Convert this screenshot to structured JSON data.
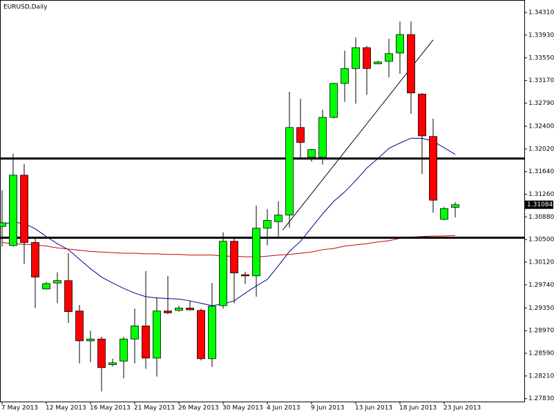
{
  "chart_data": {
    "type": "candlestick",
    "title": "EURUSD,Daily",
    "categories": [
      "7 May 2013",
      null,
      null,
      null,
      "12 May 2013",
      null,
      null,
      null,
      "16 May 2013",
      null,
      null,
      null,
      "21 May 2013",
      null,
      null,
      null,
      "26 May 2013",
      null,
      null,
      null,
      "30 May 2013",
      null,
      null,
      null,
      "4 Jun 2013",
      null,
      null,
      null,
      "9 Jun 2013",
      null,
      null,
      null,
      "13 Jun 2013",
      null,
      null,
      null,
      "18 Jun 2013",
      null,
      null,
      null,
      "23 Jun 2013",
      null
    ],
    "open": [
      1.3072,
      1.304,
      1.3158,
      1.3045,
      1.2967,
      1.2977,
      1.2981,
      1.293,
      1.288,
      1.2883,
      1.284,
      1.2846,
      1.2883,
      1.2905,
      1.2851,
      1.293,
      1.2931,
      1.2935,
      1.2931,
      1.285,
      1.2939,
      1.3047,
      1.2991,
      1.2989,
      1.3069,
      1.308,
      1.3091,
      1.3238,
      1.3188,
      1.3188,
      1.3255,
      1.3312,
      1.3337,
      1.3372,
      1.3345,
      1.3349,
      1.3363,
      1.3394,
      1.3294,
      1.3223,
      1.3084,
      1.3104
    ],
    "high": [
      1.3133,
      1.3194,
      1.3177,
      1.3053,
      1.2979,
      1.2995,
      1.3027,
      1.294,
      1.2897,
      1.2887,
      1.285,
      1.2887,
      1.2934,
      1.2997,
      1.2953,
      1.2989,
      1.2939,
      1.2947,
      1.2934,
      1.2977,
      1.3062,
      1.3055,
      1.2996,
      1.3107,
      1.3101,
      1.3114,
      1.3298,
      1.3286,
      1.3202,
      1.3268,
      1.3313,
      1.3367,
      1.3389,
      1.3375,
      1.335,
      1.3387,
      1.3416,
      1.3416,
      1.3296,
      1.3253,
      1.3105,
      1.3113
    ],
    "low": [
      1.3038,
      1.3038,
      1.3009,
      1.2935,
      1.2966,
      1.2943,
      1.291,
      1.2842,
      1.2844,
      1.2795,
      1.2837,
      1.2817,
      1.2842,
      1.2833,
      1.282,
      1.2925,
      1.2929,
      1.2931,
      1.2847,
      1.2836,
      1.2934,
      1.2943,
      1.2975,
      1.2954,
      1.304,
      1.3053,
      1.307,
      1.3186,
      1.3181,
      1.3176,
      1.3253,
      1.3281,
      1.3278,
      1.3293,
      1.3344,
      1.3322,
      1.3328,
      1.3261,
      1.316,
      1.3095,
      1.3082,
      1.3087
    ],
    "close": [
      1.3078,
      1.3158,
      1.3045,
      1.2987,
      1.2976,
      1.2981,
      1.2929,
      1.288,
      1.2883,
      1.2835,
      1.2843,
      1.2883,
      1.2905,
      1.2851,
      1.293,
      1.2927,
      1.2935,
      1.2932,
      1.285,
      1.2938,
      1.3047,
      1.2994,
      1.2989,
      1.3069,
      1.3082,
      1.3091,
      1.3238,
      1.3213,
      1.3201,
      1.3255,
      1.3312,
      1.3337,
      1.3372,
      1.3337,
      1.3348,
      1.3362,
      1.3394,
      1.3296,
      1.3224,
      1.3116,
      1.3102,
      1.31084
    ],
    "up_color": "#00ff00",
    "down_color": "#ff0000",
    "moving_averages": [
      {
        "color": "#00008b",
        "values": [
          1.3076,
          1.3079,
          1.3077,
          1.3068,
          1.3055,
          1.3043,
          1.3033,
          1.3017,
          1.3001,
          1.2987,
          1.2977,
          1.2968,
          1.296,
          1.2954,
          1.2952,
          1.2951,
          1.295,
          1.2947,
          1.2943,
          1.2939,
          1.2942,
          1.2947,
          1.296,
          1.2972,
          1.2983,
          1.3006,
          1.303,
          1.3047,
          1.307,
          1.3093,
          1.3114,
          1.313,
          1.3149,
          1.317,
          1.3186,
          1.3203,
          1.3212,
          1.322,
          1.322,
          1.3215,
          1.3204,
          1.3193
        ]
      },
      {
        "color": "#c00000",
        "values": [
          1.3045,
          1.3043,
          1.3042,
          1.3041,
          1.3039,
          1.3036,
          1.3034,
          1.3032,
          1.303,
          1.3029,
          1.3028,
          1.3027,
          1.3027,
          1.3026,
          1.3026,
          1.3025,
          1.3025,
          1.3024,
          1.3024,
          1.3024,
          1.3022,
          1.3022,
          1.3021,
          1.3021,
          1.3022,
          1.3024,
          1.3025,
          1.3027,
          1.3029,
          1.3033,
          1.3035,
          1.3039,
          1.3041,
          1.3043,
          1.3046,
          1.3048,
          1.3052,
          1.3054,
          1.3055,
          1.3056,
          1.3056,
          1.3057
        ]
      }
    ],
    "horizontal_lines": [
      1.3186,
      1.3053
    ],
    "trendline": {
      "x": [
        25.4,
        39
      ],
      "y": [
        1.3066,
        1.3385
      ]
    },
    "ylim": [
      1.2778,
      1.3452
    ],
    "yticks": [
      {
        "value": 1.3431,
        "label": "1.34310"
      },
      {
        "value": 1.3393,
        "label": "1.33930"
      },
      {
        "value": 1.3355,
        "label": "1.33550"
      },
      {
        "value": 1.3317,
        "label": "1.33170"
      },
      {
        "value": 1.3279,
        "label": "1.32790"
      },
      {
        "value": 1.324,
        "label": "1.32400"
      },
      {
        "value": 1.3202,
        "label": "1.32020"
      },
      {
        "value": 1.3164,
        "label": "1.31640"
      },
      {
        "value": 1.3126,
        "label": "1.31260"
      },
      {
        "value": 1.3088,
        "label": "1.30880"
      },
      {
        "value": 1.305,
        "label": "1.30500"
      },
      {
        "value": 1.3012,
        "label": "1.30120"
      },
      {
        "value": 1.2974,
        "label": "1.29740"
      },
      {
        "value": 1.2935,
        "label": "1.29350"
      },
      {
        "value": 1.2897,
        "label": "1.28970"
      },
      {
        "value": 1.2859,
        "label": "1.28590"
      },
      {
        "value": 1.2821,
        "label": "1.28210"
      },
      {
        "value": 1.2783,
        "label": "1.27830"
      }
    ],
    "grid": false
  }
}
